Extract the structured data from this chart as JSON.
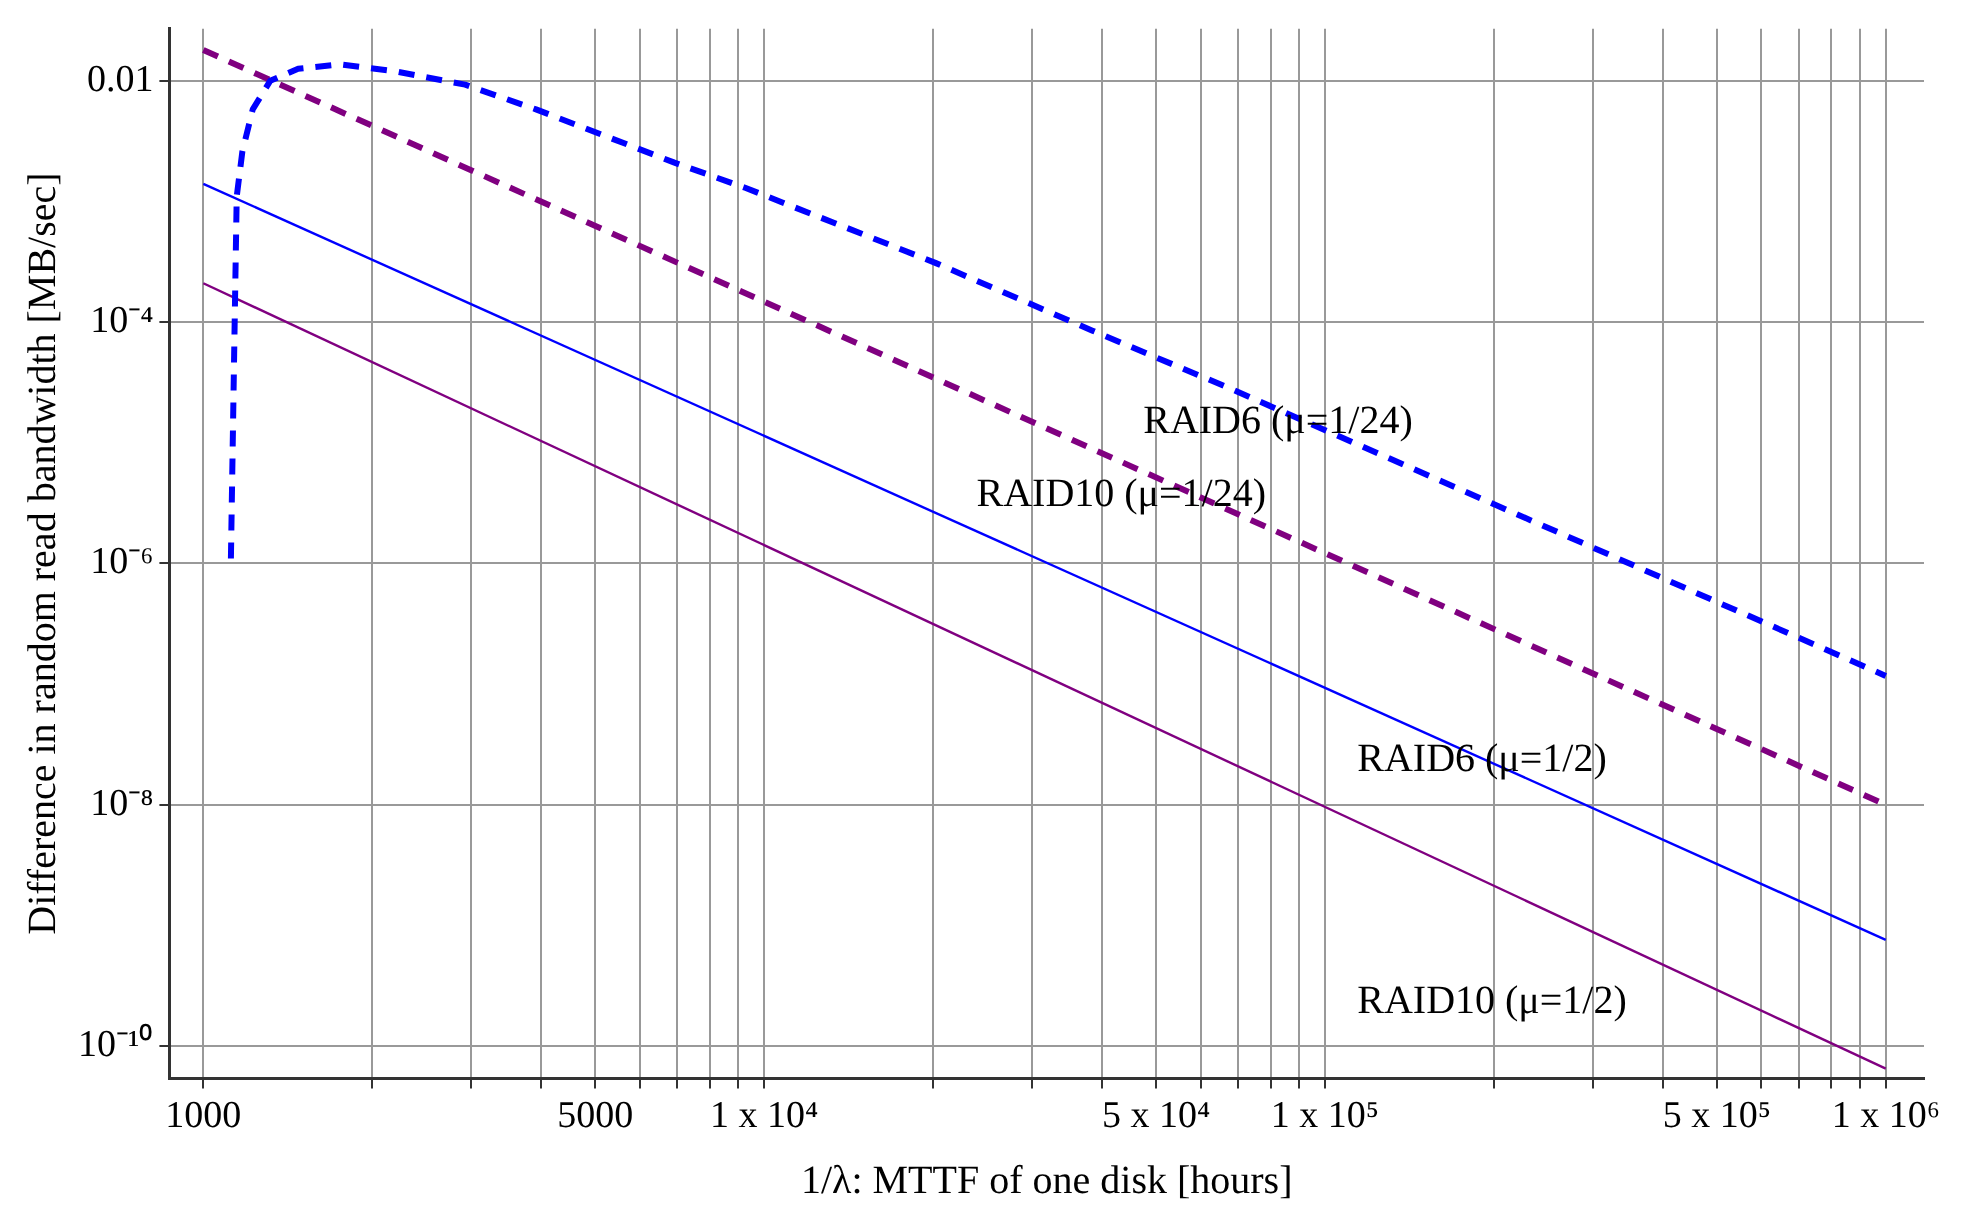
{
  "chart_data": {
    "type": "line",
    "xlabel": "1/λ: MTTF of one disk [hours]",
    "ylabel": "Difference in random read bandwidth [MB/sec]",
    "log": "xy",
    "grid": true,
    "marker": "none",
    "xlim": [
      870,
      1170000
    ],
    "ylim": [
      5.4e-11,
      0.027
    ],
    "xticks": [
      1000,
      {
        "value": 2000,
        "label": null
      },
      {
        "value": 3000,
        "label": null
      },
      {
        "value": 4000,
        "label": null
      },
      5000,
      {
        "value": 6000,
        "label": null
      },
      {
        "value": 7000,
        "label": null
      },
      {
        "value": 8000,
        "label": null
      },
      {
        "value": 9000,
        "label": null
      },
      {
        "value": 10000,
        "label": "1 x 10⁴"
      },
      {
        "value": 20000,
        "label": null
      },
      {
        "value": 30000,
        "label": null
      },
      {
        "value": 40000,
        "label": null
      },
      {
        "value": 50000,
        "label": "5 x 10⁴"
      },
      {
        "value": 60000,
        "label": null
      },
      {
        "value": 70000,
        "label": null
      },
      {
        "value": 80000,
        "label": null
      },
      {
        "value": 90000,
        "label": null
      },
      {
        "value": 100000,
        "label": "1 x 10⁵"
      },
      {
        "value": 200000,
        "label": null
      },
      {
        "value": 300000,
        "label": null
      },
      {
        "value": 400000,
        "label": null
      },
      {
        "value": 500000,
        "label": "5 x 10⁵"
      },
      {
        "value": 600000,
        "label": null
      },
      {
        "value": 700000,
        "label": null
      },
      {
        "value": 800000,
        "label": null
      },
      {
        "value": 900000,
        "label": null
      },
      {
        "value": 1000000,
        "label": "1 x 10⁶"
      }
    ],
    "yticks": [
      0.01,
      {
        "value": 0.0001,
        "label": "10⁻⁴"
      },
      {
        "value": 1e-06,
        "label": "10⁻⁶"
      },
      {
        "value": 1e-08,
        "label": "10⁻⁸"
      },
      {
        "value": 1e-10,
        "label": "10⁻¹⁰"
      }
    ],
    "series": [
      {
        "name": "RAID6 (μ=1/24)",
        "color": "#0000ff",
        "line_style": "dashed",
        "x": [
          1120,
          1135,
          1147,
          1174,
          1225,
          1316,
          1476,
          1750,
          2200,
          2930,
          3920,
          5200,
          6920,
          9250,
          20200,
          38500,
          66800,
          1000000
        ],
        "values": [
          1.1e-06,
          5.4e-05,
          0.0011,
          0.0026,
          0.0058,
          0.01,
          0.0126,
          0.0137,
          0.012,
          0.0093,
          0.0058,
          0.0035,
          0.0021,
          0.0013,
          0.00031,
          8.5e-05,
          2.9e-05,
          1.17e-07
        ]
      },
      {
        "name": "RAID10 (μ=1/24)",
        "color": "#800080",
        "line_style": "dashed",
        "x": [
          1000,
          1000000
        ],
        "values": [
          0.018,
          1e-08
        ]
      },
      {
        "name": "RAID6 (μ=1/2)",
        "color": "#0000ff",
        "line_style": "solid",
        "x": [
          1000,
          1000000
        ],
        "values": [
          0.0014,
          7.6e-10
        ]
      },
      {
        "name": "RAID10 (μ=1/2)",
        "color": "#800080",
        "line_style": "solid",
        "x": [
          1000,
          1000000
        ],
        "values": [
          0.00021,
          6.5e-11
        ]
      }
    ]
  }
}
